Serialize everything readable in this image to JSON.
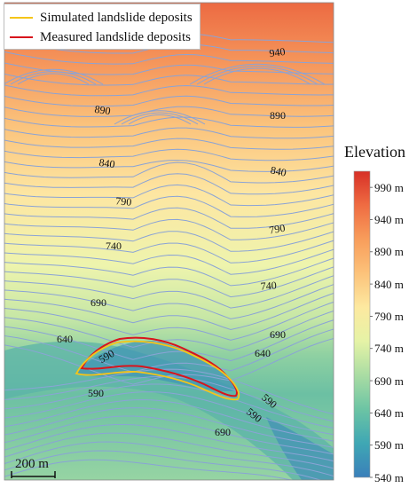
{
  "legend": {
    "simulated": {
      "label": "Simulated landslide deposits",
      "color": "#f5c518"
    },
    "measured": {
      "label": "Measured landslide deposits",
      "color": "#d8141c"
    }
  },
  "colorbar": {
    "title": "Elevation",
    "min": 540,
    "max": 1015,
    "ticks": [
      "990 m",
      "940 m",
      "890 m",
      "840 m",
      "790 m",
      "740 m",
      "690 m",
      "640 m",
      "590 m",
      "540 m"
    ],
    "tick_values": [
      990,
      940,
      890,
      840,
      790,
      740,
      690,
      640,
      590,
      540
    ],
    "stops": [
      "#3a7fba",
      "#3fa7b4",
      "#6cc4a4",
      "#a9dca3",
      "#e5f3a6",
      "#fde9a0",
      "#fcc27a",
      "#f89d5b",
      "#ef6c42",
      "#d73027"
    ]
  },
  "contour_labels": [
    "940",
    "890",
    "890",
    "840",
    "840",
    "790",
    "790",
    "740",
    "740",
    "690",
    "690",
    "640",
    "640",
    "590",
    "590",
    "590",
    "590",
    "690"
  ],
  "scale_bar": {
    "label": "200 m"
  },
  "colors": {
    "contour": "#8aa3d6"
  }
}
